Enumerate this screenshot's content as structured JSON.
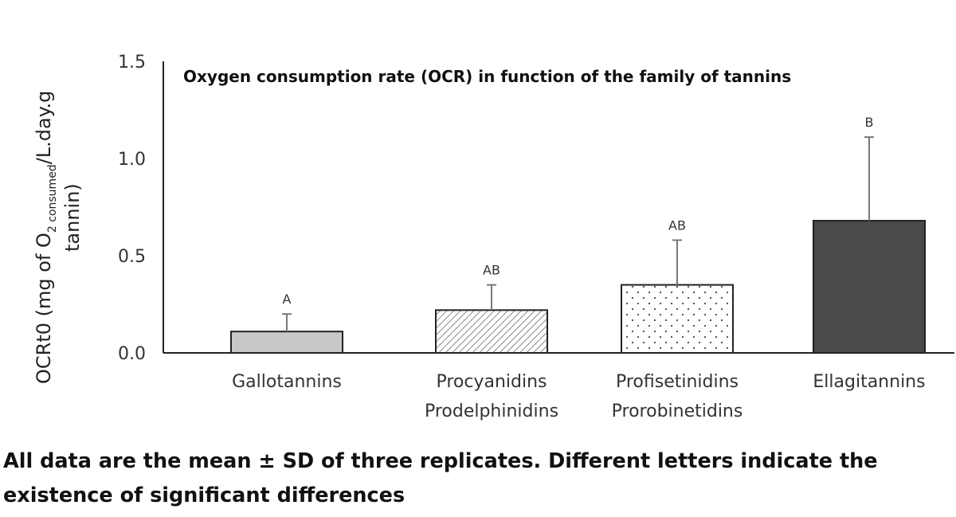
{
  "chart_data": {
    "type": "bar",
    "title": "Oxygen consumption rate (OCR) in function of the family of tannins",
    "ylabel": {
      "prefix": "OCRt0 (mg of O",
      "sub": "2 consumed",
      "suffix": "/L.day.g",
      "line2": "tannin)"
    },
    "categories": [
      [
        "Gallotannins"
      ],
      [
        "Procyanidins",
        "Prodelphinidins"
      ],
      [
        "Profisetinidins",
        "Prorobinetidins"
      ],
      [
        "Ellagitannins"
      ]
    ],
    "values": [
      0.11,
      0.22,
      0.35,
      0.68
    ],
    "errors": [
      0.09,
      0.13,
      0.23,
      0.43
    ],
    "significance_letters": [
      "A",
      "AB",
      "AB",
      "B"
    ],
    "bar_fills": [
      "solid-light-gray",
      "diagonal-hatch",
      "dotted",
      "solid-dark-gray"
    ],
    "colors": {
      "light_gray": "#c8c8c8",
      "dark_gray": "#4a4a4a",
      "axis": "#222222"
    },
    "ylim": [
      0,
      1.5
    ],
    "yticks": [
      "0.0",
      "0.5",
      "1.0",
      "1.5"
    ],
    "grid": false
  },
  "caption": "All data are the mean ± SD of three replicates. Different letters indicate the existence of significant differences"
}
